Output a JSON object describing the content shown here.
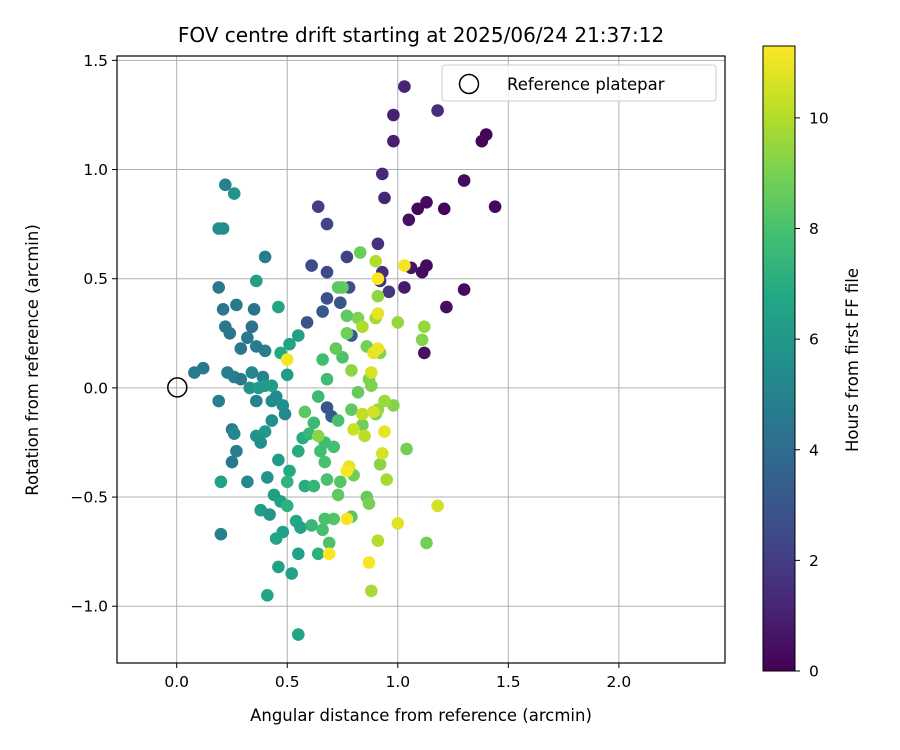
{
  "chart_data": {
    "type": "scatter",
    "title": "FOV centre drift starting at 2025/06/24 21:37:12",
    "xlabel": "Angular distance from reference (arcmin)",
    "ylabel": "Rotation from reference (arcmin)",
    "xlim": [
      -0.27,
      2.48
    ],
    "ylim": [
      -1.26,
      1.52
    ],
    "xticks": [
      0.0,
      0.5,
      1.0,
      1.5,
      2.0
    ],
    "xtick_labels": [
      "0.0",
      "0.5",
      "1.0",
      "1.5",
      "2.0"
    ],
    "yticks": [
      -1.0,
      -0.5,
      0.0,
      0.5,
      1.0,
      1.5
    ],
    "ytick_labels": [
      "−1.0",
      "−0.5",
      "0.0",
      "0.5",
      "1.0",
      "1.5"
    ],
    "grid": true,
    "legend": {
      "placement": "top-right",
      "entries": [
        "Reference platepar"
      ]
    },
    "reference_point": {
      "x": 0.0,
      "y": 0.0,
      "label": "Reference platepar"
    },
    "colorbar": {
      "label": "Hours from first FF file",
      "colormap": "viridis",
      "range": [
        0,
        11.3
      ],
      "ticks": [
        0,
        2,
        4,
        6,
        8,
        10
      ],
      "tick_labels": [
        "0",
        "2",
        "4",
        "6",
        "8",
        "10"
      ]
    },
    "points": [
      [
        1.4,
        1.16,
        0.1
      ],
      [
        1.38,
        1.13,
        0.2
      ],
      [
        1.44,
        0.83,
        0.2
      ],
      [
        1.3,
        0.95,
        0.3
      ],
      [
        1.21,
        0.82,
        0.2
      ],
      [
        1.13,
        0.85,
        0.3
      ],
      [
        1.09,
        0.82,
        0.2
      ],
      [
        1.05,
        0.77,
        0.5
      ],
      [
        1.3,
        0.45,
        0.3
      ],
      [
        1.22,
        0.37,
        0.4
      ],
      [
        1.13,
        0.56,
        0.3
      ],
      [
        1.11,
        0.53,
        0.4
      ],
      [
        1.12,
        0.16,
        0.5
      ],
      [
        1.06,
        0.55,
        0.6
      ],
      [
        1.03,
        0.46,
        0.8
      ],
      [
        1.03,
        1.38,
        1.1
      ],
      [
        0.98,
        1.25,
        1.0
      ],
      [
        0.98,
        1.13,
        0.9
      ],
      [
        1.18,
        1.27,
        1.4
      ],
      [
        0.93,
        0.98,
        1.3
      ],
      [
        0.94,
        0.87,
        1.2
      ],
      [
        0.93,
        0.53,
        1.4
      ],
      [
        0.92,
        0.49,
        1.6
      ],
      [
        0.96,
        0.44,
        1.8
      ],
      [
        0.91,
        0.66,
        1.6
      ],
      [
        0.64,
        0.83,
        2.1
      ],
      [
        0.68,
        0.75,
        2.3
      ],
      [
        0.77,
        0.6,
        2.2
      ],
      [
        0.61,
        0.56,
        2.6
      ],
      [
        0.68,
        0.53,
        2.5
      ],
      [
        0.78,
        0.46,
        2.7
      ],
      [
        0.68,
        0.41,
        2.8
      ],
      [
        0.74,
        0.39,
        3.0
      ],
      [
        0.66,
        0.35,
        3.1
      ],
      [
        0.59,
        0.3,
        2.9
      ],
      [
        0.79,
        0.24,
        3.3
      ],
      [
        0.68,
        -0.09,
        3.0
      ],
      [
        0.7,
        -0.13,
        3.2
      ],
      [
        0.22,
        0.93,
        4.9
      ],
      [
        0.26,
        0.89,
        5.8
      ],
      [
        0.19,
        0.73,
        5.6
      ],
      [
        0.21,
        0.73,
        5.5
      ],
      [
        0.4,
        0.6,
        4.7
      ],
      [
        0.19,
        0.46,
        4.6
      ],
      [
        0.27,
        0.38,
        4.5
      ],
      [
        0.21,
        0.36,
        4.4
      ],
      [
        0.35,
        0.36,
        4.3
      ],
      [
        0.22,
        0.28,
        4.5
      ],
      [
        0.34,
        0.28,
        4.2
      ],
      [
        0.24,
        0.25,
        4.3
      ],
      [
        0.32,
        0.23,
        4.6
      ],
      [
        0.29,
        0.18,
        4.5
      ],
      [
        0.36,
        0.19,
        4.7
      ],
      [
        0.4,
        0.17,
        4.8
      ],
      [
        0.12,
        0.09,
        4.5
      ],
      [
        0.08,
        0.07,
        4.6
      ],
      [
        0.23,
        0.07,
        4.7
      ],
      [
        0.26,
        0.05,
        4.8
      ],
      [
        0.29,
        0.04,
        4.6
      ],
      [
        0.34,
        0.07,
        5.2
      ],
      [
        0.39,
        0.05,
        5.0
      ],
      [
        0.19,
        -0.06,
        4.8
      ],
      [
        0.36,
        -0.06,
        5.0
      ],
      [
        0.43,
        -0.06,
        5.5
      ],
      [
        0.45,
        -0.04,
        5.4
      ],
      [
        0.48,
        -0.08,
        5.6
      ],
      [
        0.49,
        -0.12,
        5.3
      ],
      [
        0.25,
        -0.19,
        4.7
      ],
      [
        0.26,
        -0.21,
        5.2
      ],
      [
        0.25,
        -0.34,
        4.5
      ],
      [
        0.27,
        -0.29,
        4.8
      ],
      [
        0.36,
        -0.22,
        5.8
      ],
      [
        0.38,
        -0.25,
        5.6
      ],
      [
        0.43,
        -0.15,
        5.6
      ],
      [
        0.4,
        -0.2,
        6.0
      ],
      [
        0.41,
        -0.41,
        5.7
      ],
      [
        0.32,
        -0.43,
        5.3
      ],
      [
        0.2,
        -0.43,
        6.5
      ],
      [
        0.2,
        -0.67,
        4.9
      ],
      [
        0.38,
        -0.56,
        6.2
      ],
      [
        0.42,
        -0.58,
        6.0
      ],
      [
        0.44,
        -0.49,
        6.3
      ],
      [
        0.46,
        -0.33,
        6.2
      ],
      [
        0.47,
        -0.52,
        6.4
      ],
      [
        0.48,
        -0.66,
        6.4
      ],
      [
        0.45,
        -0.69,
        6.6
      ],
      [
        0.46,
        -0.82,
        6.4
      ],
      [
        0.41,
        -0.95,
        6.6
      ],
      [
        0.52,
        -0.85,
        6.5
      ],
      [
        0.54,
        -0.61,
        6.8
      ],
      [
        0.55,
        -0.76,
        6.5
      ],
      [
        0.56,
        -0.64,
        6.5
      ],
      [
        0.55,
        -1.13,
        6.6
      ],
      [
        0.33,
        0.0,
        5.7
      ],
      [
        0.37,
        0.0,
        6.2
      ],
      [
        0.4,
        0.01,
        6.1
      ],
      [
        0.43,
        0.01,
        6.3
      ],
      [
        0.5,
        0.06,
        6.2
      ],
      [
        0.46,
        0.37,
        6.6
      ],
      [
        0.36,
        0.49,
        6.3
      ],
      [
        0.55,
        0.24,
        6.4
      ],
      [
        0.51,
        0.2,
        6.6
      ],
      [
        0.47,
        0.16,
        6.8
      ],
      [
        0.51,
        -0.38,
        6.8
      ],
      [
        0.5,
        -0.43,
        7.3
      ],
      [
        0.5,
        -0.54,
        7.2
      ],
      [
        0.55,
        -0.29,
        6.9
      ],
      [
        0.57,
        -0.23,
        7.0
      ],
      [
        0.58,
        -0.45,
        7.0
      ],
      [
        0.62,
        -0.45,
        7.4
      ],
      [
        0.61,
        -0.63,
        7.5
      ],
      [
        0.64,
        -0.76,
        7.2
      ],
      [
        0.6,
        -0.21,
        7.5
      ],
      [
        0.62,
        -0.16,
        7.6
      ],
      [
        0.65,
        -0.29,
        7.8
      ],
      [
        0.67,
        -0.34,
        8.0
      ],
      [
        0.68,
        -0.42,
        8.0
      ],
      [
        0.66,
        -0.65,
        7.9
      ],
      [
        0.69,
        -0.71,
        8.1
      ],
      [
        0.71,
        -0.6,
        8.2
      ],
      [
        0.67,
        -0.6,
        8.0
      ],
      [
        0.66,
        0.13,
        7.8
      ],
      [
        0.64,
        -0.04,
        7.6
      ],
      [
        0.68,
        0.04,
        7.7
      ],
      [
        0.67,
        -0.25,
        7.8
      ],
      [
        0.71,
        -0.27,
        7.9
      ],
      [
        0.73,
        -0.15,
        8.0
      ],
      [
        0.75,
        0.14,
        8.1
      ],
      [
        0.77,
        0.33,
        8.5
      ],
      [
        0.75,
        0.46,
        8.6
      ],
      [
        0.73,
        0.46,
        8.4
      ],
      [
        0.72,
        0.18,
        8.6
      ],
      [
        0.83,
        0.62,
        8.7
      ],
      [
        0.77,
        0.25,
        8.8
      ],
      [
        0.82,
        0.32,
        9.1
      ],
      [
        0.79,
        -0.1,
        8.5
      ],
      [
        0.82,
        -0.02,
        8.6
      ],
      [
        0.84,
        -0.17,
        8.8
      ],
      [
        0.74,
        -0.43,
        8.3
      ],
      [
        0.73,
        -0.49,
        8.5
      ],
      [
        0.79,
        -0.59,
        8.4
      ],
      [
        0.8,
        -0.4,
        8.8
      ],
      [
        0.86,
        -0.5,
        8.6
      ],
      [
        0.87,
        -0.53,
        9.0
      ],
      [
        0.86,
        0.19,
        8.9
      ],
      [
        0.87,
        0.04,
        9.0
      ],
      [
        0.88,
        0.01,
        9.1
      ],
      [
        0.9,
        -0.12,
        8.9
      ],
      [
        0.92,
        0.16,
        9.2
      ],
      [
        0.91,
        0.42,
        9.4
      ],
      [
        0.9,
        0.58,
        10.0
      ],
      [
        0.9,
        0.32,
        9.8
      ],
      [
        1.0,
        0.3,
        9.5
      ],
      [
        0.98,
        -0.08,
        9.2
      ],
      [
        0.94,
        -0.06,
        9.6
      ],
      [
        0.91,
        -0.1,
        9.5
      ],
      [
        0.92,
        -0.35,
        9.3
      ],
      [
        1.04,
        -0.28,
        8.9
      ],
      [
        1.12,
        0.28,
        9.5
      ],
      [
        1.11,
        0.22,
        9.2
      ],
      [
        1.13,
        -0.71,
        8.9
      ],
      [
        0.95,
        -0.42,
        9.8
      ],
      [
        0.91,
        -0.7,
        10.0
      ],
      [
        0.88,
        -0.93,
        9.8
      ],
      [
        0.84,
        -0.12,
        10.2
      ],
      [
        0.85,
        -0.22,
        10.1
      ],
      [
        0.89,
        -0.11,
        10.5
      ],
      [
        0.93,
        -0.3,
        10.6
      ],
      [
        0.94,
        -0.2,
        10.9
      ],
      [
        0.88,
        0.07,
        10.6
      ],
      [
        0.89,
        0.16,
        10.9
      ],
      [
        0.91,
        0.18,
        11.0
      ],
      [
        1.03,
        0.56,
        11.1
      ],
      [
        0.91,
        0.5,
        11.3
      ],
      [
        0.91,
        0.34,
        10.9
      ],
      [
        0.78,
        -0.36,
        10.9
      ],
      [
        0.77,
        -0.38,
        11.2
      ],
      [
        0.77,
        -0.6,
        11.2
      ],
      [
        0.69,
        -0.76,
        11.3
      ],
      [
        0.87,
        -0.8,
        11.2
      ],
      [
        1.0,
        -0.62,
        10.8
      ],
      [
        1.18,
        -0.54,
        10.5
      ],
      [
        0.8,
        -0.19,
        10.4
      ],
      [
        0.5,
        0.13,
        11.1
      ],
      [
        0.64,
        -0.22,
        9.3
      ],
      [
        0.58,
        -0.11,
        8.4
      ],
      [
        0.79,
        0.08,
        9.4
      ],
      [
        0.84,
        0.28,
        9.9
      ]
    ]
  }
}
